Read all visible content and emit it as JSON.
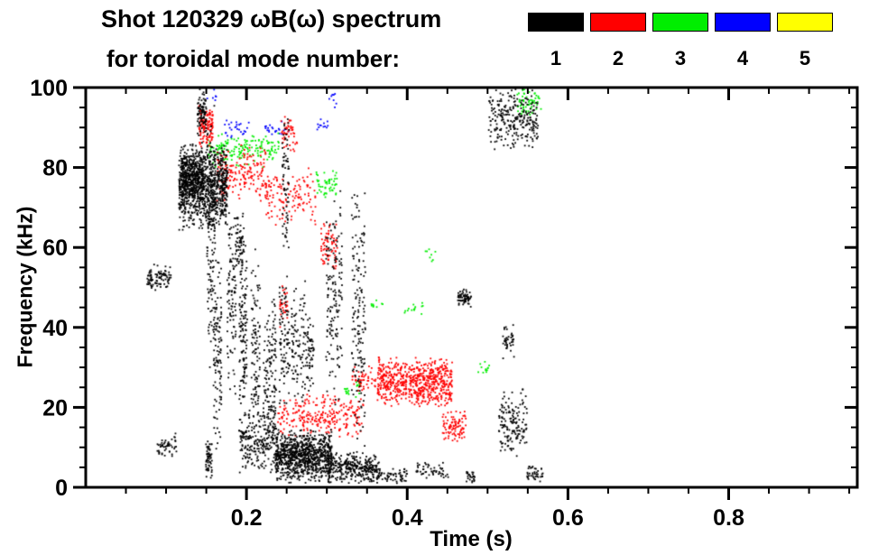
{
  "chart_data": {
    "type": "scatter",
    "title": "Shot 120329 ωB(ω) spectrum",
    "subtitle": "for toroidal mode number:",
    "xlabel": "Time (s)",
    "ylabel": "Frequency (kHz)",
    "xlim": [
      0.0,
      0.96
    ],
    "ylim": [
      0,
      100
    ],
    "grid": false,
    "legend_position": "top-right",
    "xticks": {
      "major": [
        0.2,
        0.4,
        0.6,
        0.8
      ],
      "labels": [
        "0.2",
        "0.4",
        "0.6",
        "0.8"
      ],
      "minor_step": 0.05
    },
    "yticks": {
      "major": [
        0,
        20,
        40,
        60,
        80,
        100
      ],
      "labels": [
        "0",
        "20",
        "40",
        "60",
        "80",
        "100"
      ],
      "minor_step": 5
    },
    "legend": [
      {
        "label": "1",
        "color": "#000000"
      },
      {
        "label": "2",
        "color": "#ff0000"
      },
      {
        "label": "3",
        "color": "#00ee00"
      },
      {
        "label": "4",
        "color": "#0000ff"
      },
      {
        "label": "5",
        "color": "#ffff00"
      }
    ],
    "point_size": 1.8,
    "series": [
      {
        "name": "n=1",
        "legend_label": "1",
        "color": "#000000",
        "clusters": [
          [
            0.075,
            0.105,
            49,
            56,
            90
          ],
          [
            0.088,
            0.112,
            7,
            14,
            50
          ],
          [
            0.115,
            0.175,
            64,
            87,
            950
          ],
          [
            0.118,
            0.145,
            72,
            84,
            250
          ],
          [
            0.138,
            0.149,
            88,
            100,
            90
          ],
          [
            0.15,
            0.16,
            28,
            96,
            140
          ],
          [
            0.158,
            0.168,
            6,
            62,
            110
          ],
          [
            0.148,
            0.156,
            2,
            12,
            60
          ],
          [
            0.175,
            0.186,
            22,
            72,
            100
          ],
          [
            0.186,
            0.196,
            55,
            70,
            60
          ],
          [
            0.19,
            0.2,
            8,
            66,
            130
          ],
          [
            0.205,
            0.216,
            12,
            62,
            100
          ],
          [
            0.22,
            0.236,
            4,
            48,
            140
          ],
          [
            0.243,
            0.252,
            58,
            97,
            70
          ],
          [
            0.24,
            0.253,
            18,
            55,
            90
          ],
          [
            0.255,
            0.272,
            18,
            56,
            90
          ],
          [
            0.272,
            0.283,
            22,
            46,
            60
          ],
          [
            0.298,
            0.318,
            18,
            76,
            150
          ],
          [
            0.33,
            0.347,
            4,
            76,
            160
          ],
          [
            0.19,
            0.235,
            3,
            21,
            220
          ],
          [
            0.235,
            0.305,
            1,
            15,
            900
          ],
          [
            0.3,
            0.365,
            1,
            9,
            300
          ],
          [
            0.36,
            0.4,
            1,
            5,
            60
          ],
          [
            0.41,
            0.45,
            2,
            7,
            50
          ],
          [
            0.462,
            0.479,
            45,
            50,
            70
          ],
          [
            0.5,
            0.562,
            84,
            100,
            260
          ],
          [
            0.513,
            0.548,
            7,
            25,
            150
          ],
          [
            0.518,
            0.532,
            32,
            41,
            40
          ],
          [
            0.548,
            0.568,
            1,
            6,
            40
          ],
          [
            0.472,
            0.484,
            1,
            5,
            25
          ]
        ]
      },
      {
        "name": "n=2",
        "legend_label": "2",
        "color": "#ff0000",
        "clusters": [
          [
            0.14,
            0.157,
            85,
            97,
            130
          ],
          [
            0.162,
            0.225,
            71,
            86,
            180
          ],
          [
            0.222,
            0.285,
            65,
            81,
            130
          ],
          [
            0.242,
            0.262,
            84,
            93,
            50
          ],
          [
            0.238,
            0.345,
            12,
            24,
            260
          ],
          [
            0.29,
            0.312,
            52,
            67,
            70
          ],
          [
            0.33,
            0.36,
            24,
            31,
            50
          ],
          [
            0.362,
            0.455,
            20,
            33,
            650
          ],
          [
            0.443,
            0.472,
            11,
            20,
            90
          ],
          [
            0.24,
            0.25,
            40,
            52,
            30
          ]
        ]
      },
      {
        "name": "n=3",
        "legend_label": "3",
        "color": "#00ee00",
        "clusters": [
          [
            0.15,
            0.24,
            80,
            89,
            170
          ],
          [
            0.286,
            0.312,
            72,
            80,
            50
          ],
          [
            0.536,
            0.566,
            92,
            100,
            60
          ],
          [
            0.318,
            0.34,
            22,
            27,
            18
          ],
          [
            0.395,
            0.42,
            43,
            47,
            14
          ],
          [
            0.487,
            0.507,
            28,
            32,
            12
          ],
          [
            0.352,
            0.372,
            44,
            48,
            10
          ],
          [
            0.42,
            0.435,
            56,
            60,
            8
          ]
        ]
      },
      {
        "name": "n=4",
        "legend_label": "4",
        "color": "#0000ff",
        "clusters": [
          [
            0.172,
            0.202,
            87,
            93,
            26
          ],
          [
            0.222,
            0.252,
            87,
            92,
            22
          ],
          [
            0.285,
            0.302,
            89,
            93,
            12
          ],
          [
            0.3,
            0.312,
            95,
            99,
            8
          ],
          [
            0.15,
            0.162,
            96,
            100,
            6
          ]
        ]
      },
      {
        "name": "n=5",
        "legend_label": "5",
        "color": "#ffff00",
        "clusters": []
      }
    ]
  }
}
